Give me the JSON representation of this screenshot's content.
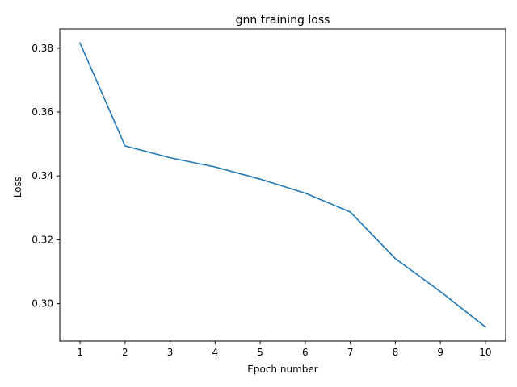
{
  "chart_data": {
    "type": "line",
    "title": "gnn training loss",
    "xlabel": "Epoch number",
    "ylabel": "Loss",
    "x": [
      1,
      2,
      3,
      4,
      5,
      6,
      7,
      8,
      9,
      10
    ],
    "series": [
      {
        "values": [
          0.3816,
          0.3494,
          0.3457,
          0.3428,
          0.339,
          0.3346,
          0.3287,
          0.3141,
          0.3038,
          0.2927
        ],
        "color": "#1f77b4"
      }
    ],
    "xlim": [
      0.55,
      10.45
    ],
    "ylim": [
      0.2883,
      0.386
    ],
    "xticks": [
      1,
      2,
      3,
      4,
      5,
      6,
      7,
      8,
      9,
      10
    ],
    "xtick_labels": [
      "1",
      "2",
      "3",
      "4",
      "5",
      "6",
      "7",
      "8",
      "9",
      "10"
    ],
    "yticks": [
      0.3,
      0.32,
      0.34,
      0.36,
      0.38
    ],
    "ytick_labels": [
      "0.30",
      "0.32",
      "0.34",
      "0.36",
      "0.38"
    ],
    "grid": false,
    "legend": "none"
  }
}
